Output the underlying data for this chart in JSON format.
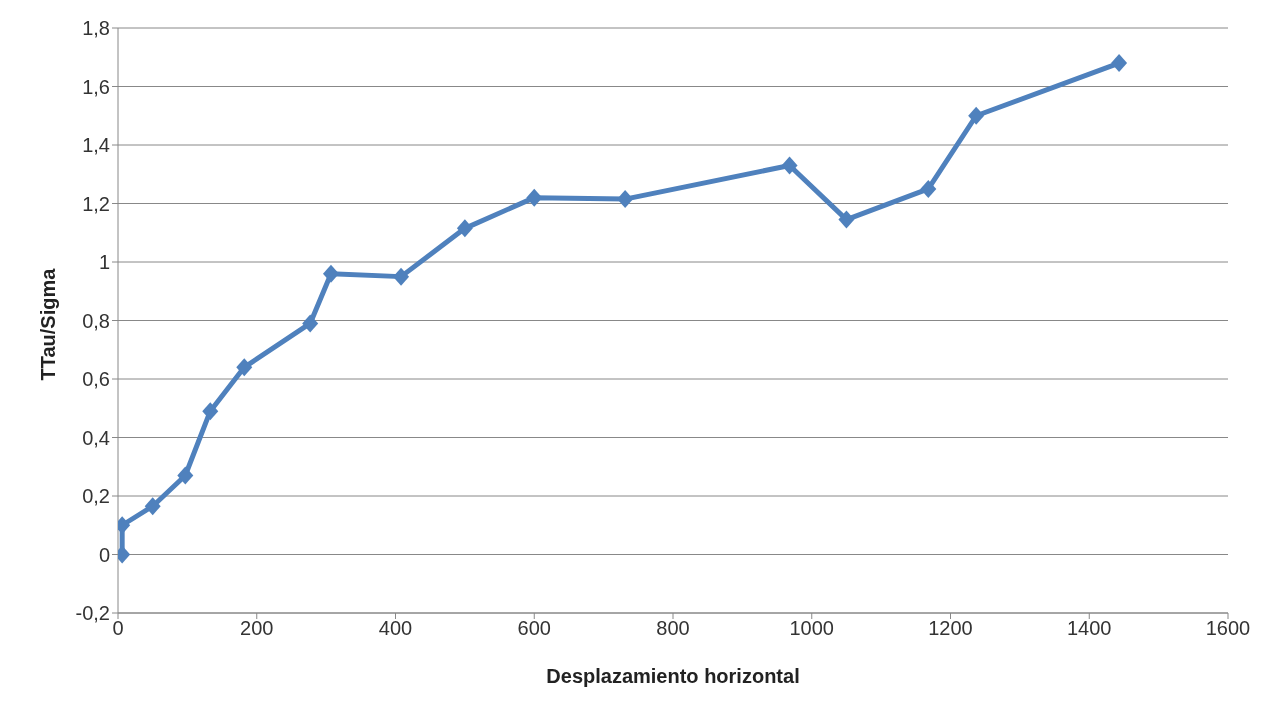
{
  "chart_data": {
    "type": "line",
    "xlabel": "Desplazamiento  horizontal",
    "ylabel": "TTau/Sigma",
    "x": [
      6,
      6,
      50,
      97,
      133,
      182,
      277,
      307,
      408,
      500,
      600,
      731,
      968,
      1050,
      1168,
      1237,
      1443
    ],
    "series": [
      {
        "color": "#4f81bd",
        "values": [
          0,
          0.1,
          0.165,
          0.27,
          0.49,
          0.64,
          0.79,
          0.96,
          0.95,
          1.115,
          1.22,
          1.215,
          1.33,
          1.145,
          1.25,
          1.5,
          1.68
        ]
      }
    ],
    "xlim": [
      0,
      1600
    ],
    "xticks": [
      0,
      200,
      400,
      600,
      800,
      1000,
      1200,
      1400,
      1600
    ],
    "ylim": [
      -0.2,
      1.8
    ],
    "yticks": [
      {
        "value": -0.2,
        "label": "-0,2"
      },
      0,
      {
        "value": 0.2,
        "label": "0,2"
      },
      {
        "value": 0.4,
        "label": "0,4"
      },
      {
        "value": 0.6,
        "label": "0,6"
      },
      {
        "value": 0.8,
        "label": "0,8"
      },
      1,
      {
        "value": 1.2,
        "label": "1,2"
      },
      {
        "value": 1.4,
        "label": "1,4"
      },
      {
        "value": 1.6,
        "label": "1,6"
      },
      {
        "value": 1.8,
        "label": "1,8"
      }
    ],
    "grid": "y",
    "marker": "diamond",
    "line_style": "solid"
  }
}
